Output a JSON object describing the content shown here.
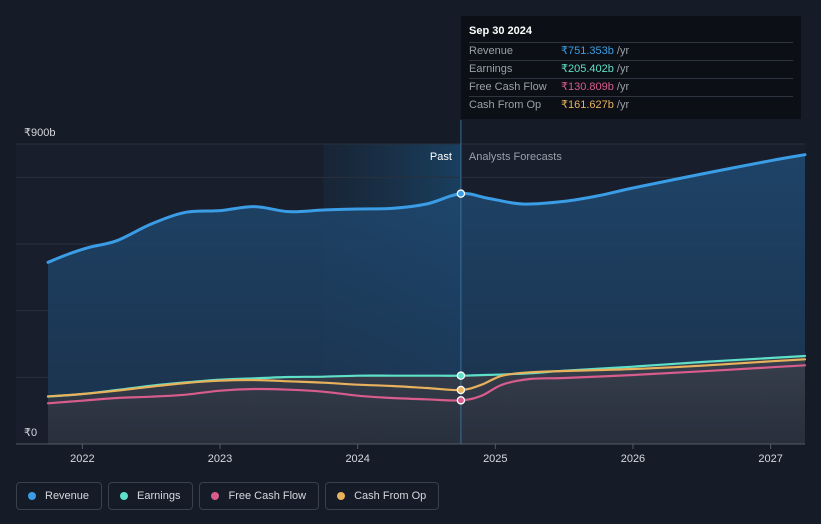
{
  "tooltip": {
    "date": "Sep 30 2024",
    "rows": [
      {
        "label": "Revenue",
        "value": "₹751.353b",
        "unit": "/yr",
        "color": "#3a9de6"
      },
      {
        "label": "Earnings",
        "value": "₹205.402b",
        "unit": "/yr",
        "color": "#5fe0c8"
      },
      {
        "label": "Free Cash Flow",
        "value": "₹130.809b",
        "unit": "/yr",
        "color": "#d85c8c"
      },
      {
        "label": "Cash From Op",
        "value": "₹161.627b",
        "unit": "/yr",
        "color": "#e8b25c"
      }
    ]
  },
  "chart_data": {
    "type": "line",
    "title": "",
    "y_axis_labels": {
      "top": "₹900b",
      "bottom": "₹0"
    },
    "ylim": [
      0,
      900
    ],
    "xlim": [
      2021.75,
      2027.25
    ],
    "x_tick_labels": [
      "2022",
      "2023",
      "2024",
      "2025",
      "2026",
      "2027"
    ],
    "x_ticks": [
      2022,
      2023,
      2024,
      2025,
      2026,
      2027
    ],
    "past_label": "Past",
    "forecast_label": "Analysts Forecasts",
    "past_region_start": 2023.75,
    "divider_x": 2024.75,
    "series": [
      {
        "name": "Revenue",
        "color": "#3a9de6",
        "points": [
          [
            2021.75,
            545
          ],
          [
            2021.9,
            570
          ],
          [
            2022.05,
            590
          ],
          [
            2022.25,
            610
          ],
          [
            2022.5,
            660
          ],
          [
            2022.75,
            695
          ],
          [
            2023.0,
            700
          ],
          [
            2023.25,
            712
          ],
          [
            2023.5,
            697
          ],
          [
            2023.75,
            702
          ],
          [
            2024.0,
            705
          ],
          [
            2024.25,
            707
          ],
          [
            2024.5,
            720
          ],
          [
            2024.75,
            751
          ],
          [
            2024.95,
            737
          ],
          [
            2025.2,
            720
          ],
          [
            2025.5,
            728
          ],
          [
            2025.75,
            745
          ],
          [
            2026.0,
            768
          ],
          [
            2026.5,
            810
          ],
          [
            2027.0,
            850
          ],
          [
            2027.25,
            868
          ]
        ]
      },
      {
        "name": "Earnings",
        "color": "#5fe0c8",
        "points": [
          [
            2021.75,
            142
          ],
          [
            2022.0,
            150
          ],
          [
            2022.25,
            162
          ],
          [
            2022.5,
            175
          ],
          [
            2022.75,
            185
          ],
          [
            2023.0,
            193
          ],
          [
            2023.25,
            197
          ],
          [
            2023.5,
            201
          ],
          [
            2023.75,
            202
          ],
          [
            2024.0,
            205
          ],
          [
            2024.25,
            205
          ],
          [
            2024.5,
            205
          ],
          [
            2024.75,
            205
          ],
          [
            2025.0,
            208
          ],
          [
            2025.25,
            212
          ],
          [
            2025.5,
            220
          ],
          [
            2026.0,
            232
          ],
          [
            2026.5,
            246
          ],
          [
            2027.0,
            258
          ],
          [
            2027.25,
            264
          ]
        ]
      },
      {
        "name": "Free Cash Flow",
        "color": "#d85c8c",
        "points": [
          [
            2021.75,
            122
          ],
          [
            2022.0,
            130
          ],
          [
            2022.25,
            138
          ],
          [
            2022.5,
            142
          ],
          [
            2022.75,
            148
          ],
          [
            2023.0,
            160
          ],
          [
            2023.25,
            165
          ],
          [
            2023.5,
            163
          ],
          [
            2023.75,
            157
          ],
          [
            2024.0,
            145
          ],
          [
            2024.25,
            138
          ],
          [
            2024.5,
            134
          ],
          [
            2024.75,
            131
          ],
          [
            2024.9,
            145
          ],
          [
            2025.05,
            178
          ],
          [
            2025.25,
            195
          ],
          [
            2025.5,
            198
          ],
          [
            2026.0,
            207
          ],
          [
            2026.5,
            218
          ],
          [
            2027.0,
            230
          ],
          [
            2027.25,
            236
          ]
        ]
      },
      {
        "name": "Cash From Op",
        "color": "#e8b25c",
        "points": [
          [
            2021.75,
            143
          ],
          [
            2022.0,
            150
          ],
          [
            2022.25,
            160
          ],
          [
            2022.5,
            172
          ],
          [
            2022.75,
            183
          ],
          [
            2023.0,
            190
          ],
          [
            2023.25,
            192
          ],
          [
            2023.5,
            188
          ],
          [
            2023.75,
            184
          ],
          [
            2024.0,
            178
          ],
          [
            2024.25,
            174
          ],
          [
            2024.5,
            168
          ],
          [
            2024.75,
            162
          ],
          [
            2024.9,
            178
          ],
          [
            2025.05,
            205
          ],
          [
            2025.25,
            215
          ],
          [
            2025.5,
            219
          ],
          [
            2026.0,
            225
          ],
          [
            2026.5,
            235
          ],
          [
            2027.0,
            248
          ],
          [
            2027.25,
            254
          ]
        ]
      }
    ]
  },
  "legend": [
    {
      "label": "Revenue",
      "color": "#3a9de6"
    },
    {
      "label": "Earnings",
      "color": "#5fe0c8"
    },
    {
      "label": "Free Cash Flow",
      "color": "#d85c8c"
    },
    {
      "label": "Cash From Op",
      "color": "#e8b25c"
    }
  ]
}
